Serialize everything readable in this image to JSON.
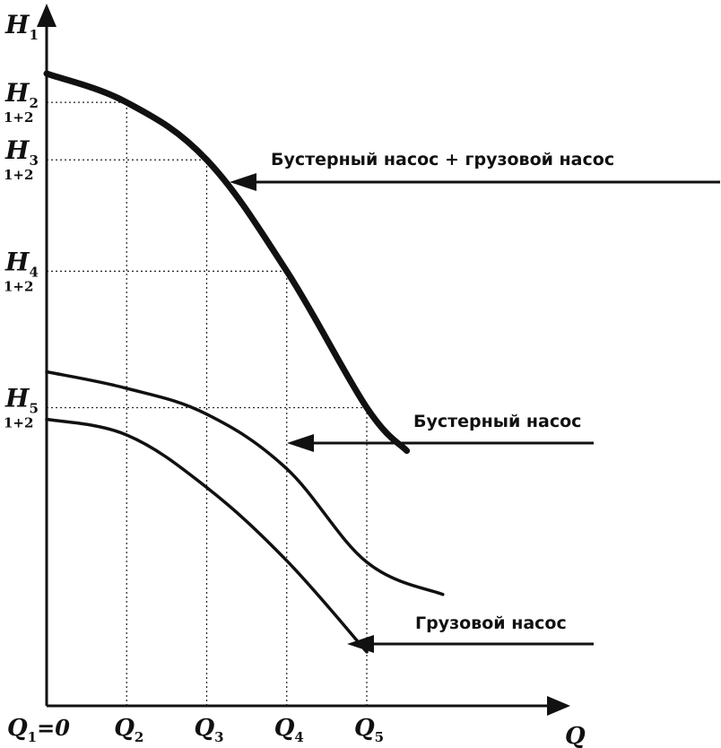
{
  "chart_data": {
    "type": "line",
    "title": "",
    "xlabel": "Q",
    "ylabel": "H",
    "ylabel_sub": "1",
    "x_ticks": [
      {
        "sym": "Q",
        "sub": "1",
        "suffix": "=0"
      },
      {
        "sym": "Q",
        "sub": "2",
        "suffix": ""
      },
      {
        "sym": "Q",
        "sub": "3",
        "suffix": ""
      },
      {
        "sym": "Q",
        "sub": "4",
        "suffix": ""
      },
      {
        "sym": "Q",
        "sub": "5",
        "suffix": ""
      }
    ],
    "y_ticks": [
      {
        "sym": "H",
        "sub": "2",
        "under": "1+2"
      },
      {
        "sym": "H",
        "sub": "3",
        "under": "1+2"
      },
      {
        "sym": "H",
        "sub": "4",
        "under": "1+2"
      },
      {
        "sym": "H",
        "sub": "5",
        "under": "1+2"
      }
    ],
    "xlim": [
      0,
      6.0
    ],
    "ylim": [
      0,
      9.4
    ],
    "grid": "dotted lines from each Q tick up and from each H tick across",
    "series": [
      {
        "name": "Бустерный насос + грузовой насос",
        "style": "thick",
        "x": [
          0,
          1,
          2,
          3,
          4,
          4.5
        ],
        "y": [
          8.8,
          8.4,
          7.6,
          6.05,
          4.15,
          3.55
        ]
      },
      {
        "name": "Бустерный насос",
        "style": "thin",
        "x": [
          0,
          1,
          2,
          3,
          4,
          4.95
        ],
        "y": [
          4.65,
          4.42,
          4.06,
          3.3,
          2.0,
          1.55
        ]
      },
      {
        "name": "Грузовой насос",
        "style": "thin",
        "x": [
          0,
          1,
          2,
          3,
          4
        ],
        "y": [
          3.99,
          3.77,
          3.04,
          2.02,
          0.75
        ]
      }
    ]
  }
}
